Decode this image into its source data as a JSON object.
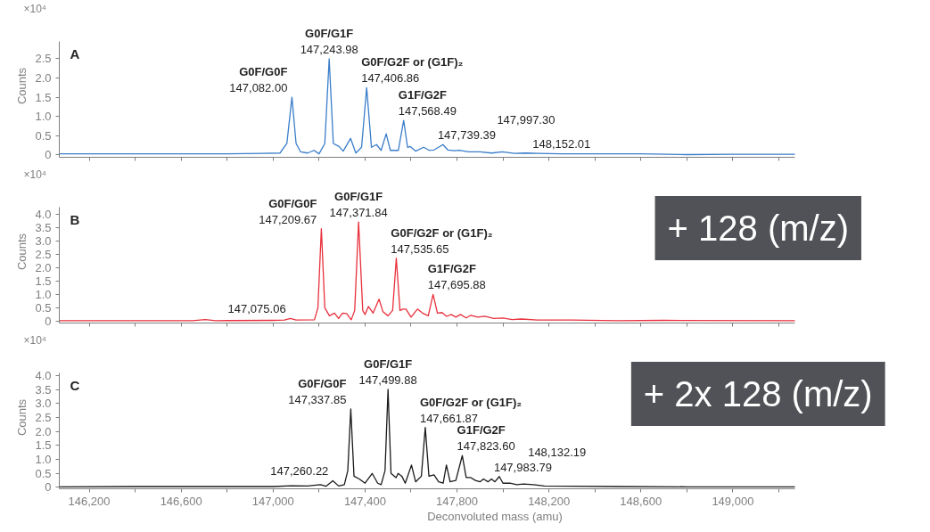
{
  "chart_data": [
    {
      "type": "line",
      "ylabel": "Counts",
      "xlim": [
        146070,
        149270
      ],
      "ylim": [
        -0.06,
        2.95
      ],
      "tick_labels": "y",
      "grid": false,
      "xticks": [
        {
          "value": 146200,
          "label": null
        },
        {
          "value": 146400,
          "label": null
        },
        {
          "value": 146600,
          "label": null
        },
        {
          "value": 146800,
          "label": null
        },
        {
          "value": 147000,
          "label": null
        },
        {
          "value": 147200,
          "label": null
        },
        {
          "value": 147400,
          "label": null
        },
        {
          "value": 147600,
          "label": null
        },
        {
          "value": 147800,
          "label": null
        },
        {
          "value": 148000,
          "label": null
        },
        {
          "value": 148200,
          "label": null
        },
        {
          "value": 148400,
          "label": null
        },
        {
          "value": 148600,
          "label": null
        },
        {
          "value": 148800,
          "label": null
        },
        {
          "value": 149000,
          "label": null
        },
        {
          "value": 149200,
          "label": null
        }
      ],
      "yticks": [
        0,
        0.5,
        {
          "value": 1,
          "label": "1.0"
        },
        1.5,
        {
          "value": 2,
          "label": "2.0"
        },
        2.5
      ],
      "series": [
        {
          "color": "#3a7dc9",
          "x": [
            146070,
            146800,
            146950,
            147030,
            147060,
            147082,
            147100,
            147120,
            147150,
            147178,
            147200,
            147225,
            147244,
            147262,
            147287,
            147305,
            147337,
            147360,
            147385,
            147407,
            147428,
            147450,
            147470,
            147492,
            147510,
            147545,
            147568,
            147585,
            147597,
            147620,
            147655,
            147680,
            147700,
            147739,
            147760,
            147790,
            147810,
            147850,
            147900,
            147950,
            147997,
            148050,
            148100,
            148152,
            148250,
            148600,
            148800,
            149000,
            149270
          ],
          "values": [
            0.03,
            0.03,
            0.04,
            0.05,
            0.3,
            1.5,
            0.3,
            0.08,
            0.05,
            0.12,
            0.03,
            0.3,
            2.5,
            0.3,
            0.22,
            0.1,
            0.43,
            0.05,
            0.2,
            1.75,
            0.2,
            0.27,
            0.12,
            0.55,
            0.12,
            0.12,
            0.9,
            0.2,
            0.22,
            0.1,
            0.2,
            0.12,
            0.13,
            0.27,
            0.13,
            0.11,
            0.12,
            0.08,
            0.08,
            0.05,
            0.08,
            0.04,
            0.05,
            0.04,
            0.03,
            0.03,
            0.01,
            0.02,
            0.02
          ]
        }
      ],
      "annotations": [
        "A",
        "×10⁴",
        {
          "text": "G0F/G0F\n147,082.00",
          "x": 147082,
          "y": 1.5
        },
        {
          "text": "G0F/G1F\n147,243.98",
          "x": 147243.98,
          "y": 2.5
        },
        {
          "text": "G0F/G2F or (G1F)₂\n147,406.86",
          "x": 147406.86,
          "y": 1.75
        },
        {
          "text": "G1F/G2F\n147,568.49",
          "x": 147568.49,
          "y": 0.9
        },
        {
          "text": "147,739.39",
          "x": 147739.39,
          "y": 0.27
        },
        {
          "text": "147,997.30",
          "x": 147997.3,
          "y": 0.08
        },
        {
          "text": "148,152.01",
          "x": 148152.01,
          "y": 0.04
        }
      ]
    },
    {
      "type": "line",
      "ylabel": "Counts",
      "xlim": [
        146070,
        149270
      ],
      "ylim": [
        -0.07,
        4.25
      ],
      "tick_labels": "y",
      "grid": false,
      "xticks": [
        {
          "value": 146200,
          "label": null
        },
        {
          "value": 146400,
          "label": null
        },
        {
          "value": 146600,
          "label": null
        },
        {
          "value": 146800,
          "label": null
        },
        {
          "value": 147000,
          "label": null
        },
        {
          "value": 147200,
          "label": null
        },
        {
          "value": 147400,
          "label": null
        },
        {
          "value": 147600,
          "label": null
        },
        {
          "value": 147800,
          "label": null
        },
        {
          "value": 148000,
          "label": null
        },
        {
          "value": 148200,
          "label": null
        },
        {
          "value": 148400,
          "label": null
        },
        {
          "value": 148600,
          "label": null
        },
        {
          "value": 148800,
          "label": null
        },
        {
          "value": 149000,
          "label": null
        },
        {
          "value": 149200,
          "label": null
        }
      ],
      "yticks": [
        0,
        0.5,
        {
          "value": 1,
          "label": "1.0"
        },
        1.5,
        {
          "value": 2,
          "label": "2.0"
        },
        2.5,
        {
          "value": 3,
          "label": "3.0"
        },
        3.5,
        {
          "value": 4,
          "label": "4.0"
        }
      ],
      "series": [
        {
          "color": "#e8303c",
          "x": [
            146070,
            146650,
            146705,
            146750,
            147000,
            147050,
            147075,
            147100,
            147180,
            147195,
            147210,
            147225,
            147245,
            147267,
            147285,
            147302,
            147320,
            147340,
            147355,
            147372,
            147390,
            147400,
            147415,
            147435,
            147461,
            147478,
            147500,
            147520,
            147536,
            147552,
            147565,
            147578,
            147600,
            147628,
            147650,
            147675,
            147696,
            147715,
            147735,
            147755,
            147775,
            147795,
            147815,
            147840,
            147860,
            147890,
            147920,
            147960,
            148000,
            148040,
            148080,
            148150,
            148300,
            148500,
            148700,
            149270
          ],
          "values": [
            0.02,
            0.02,
            0.06,
            0.02,
            0.03,
            0.04,
            0.1,
            0.04,
            0.05,
            0.5,
            3.45,
            0.5,
            0.2,
            0.3,
            0.1,
            0.3,
            0.28,
            0.05,
            0.4,
            3.7,
            0.4,
            0.25,
            0.55,
            0.3,
            0.82,
            0.35,
            0.2,
            0.4,
            2.35,
            0.4,
            0.45,
            0.45,
            0.15,
            0.45,
            0.3,
            0.2,
            1.0,
            0.3,
            0.32,
            0.18,
            0.25,
            0.15,
            0.25,
            0.12,
            0.22,
            0.15,
            0.18,
            0.1,
            0.12,
            0.06,
            0.08,
            0.04,
            0.04,
            0.02,
            0.03,
            0.02
          ]
        }
      ],
      "annotations": [
        "B",
        "×10⁴",
        {
          "text": "147,075.06",
          "x": 147075.06,
          "y": 0.1
        },
        {
          "text": "G0F/G0F\n147,209.67",
          "x": 147209.67,
          "y": 3.45
        },
        {
          "text": "G0F/G1F\n147,371.84",
          "x": 147371.84,
          "y": 3.7
        },
        {
          "text": "G0F/G2F or (G1F)₂\n147,535.65",
          "x": 147535.65,
          "y": 2.35
        },
        {
          "text": "G1F/G2F\n147,695.88",
          "x": 147695.88,
          "y": 1.0
        },
        "+ 128 (m/z)"
      ]
    },
    {
      "type": "line",
      "ylabel": "Counts",
      "xlabel": "Deconvoluted mass (amu)",
      "xlim": [
        146070,
        149270
      ],
      "ylim": [
        -0.05,
        4.1
      ],
      "grid": false,
      "xticks": [
        {
          "value": 146200,
          "label": "146,200"
        },
        {
          "value": 146400,
          "label": null
        },
        {
          "value": 146600,
          "label": "146,600"
        },
        {
          "value": 146800,
          "label": null
        },
        {
          "value": 147000,
          "label": "147,000"
        },
        {
          "value": 147200,
          "label": null
        },
        {
          "value": 147400,
          "label": "147,400"
        },
        {
          "value": 147600,
          "label": null
        },
        {
          "value": 147800,
          "label": "147,800"
        },
        {
          "value": 148000,
          "label": null
        },
        {
          "value": 148200,
          "label": "148,200"
        },
        {
          "value": 148400,
          "label": null
        },
        {
          "value": 148600,
          "label": "148,600"
        },
        {
          "value": 148800,
          "label": null
        },
        {
          "value": 149000,
          "label": "149,000"
        },
        {
          "value": 149200,
          "label": null
        }
      ],
      "yticks": [
        0,
        0.5,
        {
          "value": 1,
          "label": "1.0"
        },
        1.5,
        {
          "value": 2,
          "label": "2.0"
        },
        2.5,
        {
          "value": 3,
          "label": "3.0"
        },
        3.5,
        {
          "value": 4,
          "label": "4.0"
        }
      ],
      "series": [
        {
          "color": "#1a1a1a",
          "x": [
            146070,
            146400,
            146700,
            147000,
            147080,
            147150,
            147206,
            147230,
            147260,
            147285,
            147310,
            147325,
            147338,
            147352,
            147375,
            147400,
            147431,
            147455,
            147470,
            147487,
            147500,
            147513,
            147535,
            147544,
            147560,
            147575,
            147602,
            147620,
            147645,
            147662,
            147678,
            147700,
            147720,
            147740,
            147754,
            147770,
            147795,
            147823,
            147840,
            147860,
            147880,
            147900,
            147915,
            147935,
            147950,
            147965,
            147984,
            148000,
            148030,
            148060,
            148090,
            148132,
            148180,
            148300,
            148500,
            148800,
            149270
          ],
          "values": [
            0.02,
            0.03,
            0.03,
            0.03,
            0.06,
            0.05,
            0.1,
            0.04,
            0.24,
            0.05,
            0.1,
            0.6,
            2.81,
            0.4,
            0.3,
            0.15,
            0.5,
            0.15,
            0.1,
            0.6,
            3.51,
            0.5,
            0.35,
            0.5,
            0.4,
            0.15,
            0.8,
            0.2,
            0.4,
            2.15,
            0.4,
            0.45,
            0.2,
            0.15,
            0.8,
            0.2,
            0.25,
            1.14,
            0.35,
            0.35,
            0.25,
            0.2,
            0.3,
            0.2,
            0.3,
            0.2,
            0.39,
            0.15,
            0.15,
            0.1,
            0.12,
            0.1,
            0.05,
            0.04,
            0.03,
            0.02,
            0.02
          ]
        }
      ],
      "annotations": [
        "C",
        "×10⁴",
        {
          "text": "147,260.22",
          "x": 147260.22,
          "y": 0.24
        },
        {
          "text": "G0F/G0F\n147,337.85",
          "x": 147337.85,
          "y": 2.81
        },
        {
          "text": "G0F/G1F\n147,499.88",
          "x": 147499.88,
          "y": 3.51
        },
        {
          "text": "G0F/G2F or (G1F)₂\n147,661.87",
          "x": 147661.87,
          "y": 2.15
        },
        {
          "text": "G1F/G2F\n147,823.60",
          "x": 147823.6,
          "y": 1.14
        },
        {
          "text": "147,983.79",
          "x": 147983.79,
          "y": 0.39
        },
        {
          "text": "148,132.19",
          "x": 148132.19,
          "y": 0.1
        },
        "+ 2x 128 (m/z)"
      ]
    }
  ]
}
